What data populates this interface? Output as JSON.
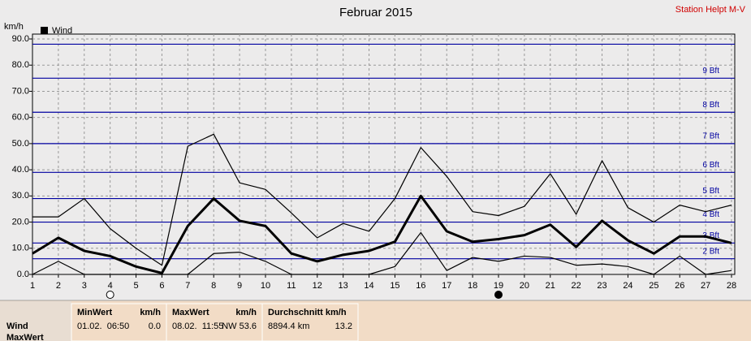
{
  "station": "Station Helpt M-V",
  "chart_data": {
    "type": "line",
    "title": "Februar 2015",
    "y_axis_label": "km/h",
    "legend_label": "Wind",
    "legend_color": "#000000",
    "x": [
      1,
      2,
      3,
      4,
      5,
      6,
      7,
      8,
      9,
      10,
      11,
      12,
      13,
      14,
      15,
      16,
      17,
      18,
      19,
      20,
      21,
      22,
      23,
      24,
      25,
      26,
      27,
      28
    ],
    "xlim": [
      1,
      28
    ],
    "xticks": [
      1,
      2,
      3,
      4,
      5,
      6,
      7,
      8,
      9,
      10,
      11,
      12,
      13,
      14,
      15,
      16,
      17,
      18,
      19,
      20,
      21,
      22,
      23,
      24,
      25,
      26,
      27,
      28
    ],
    "ylim": [
      0,
      90
    ],
    "yticks": [
      {
        "value": 0,
        "label": "0.0"
      },
      {
        "value": 10,
        "label": "10.0"
      },
      {
        "value": 20,
        "label": "20.0"
      },
      {
        "value": 30,
        "label": "30.0"
      },
      {
        "value": 40,
        "label": "40.0"
      },
      {
        "value": 50,
        "label": "50.0"
      },
      {
        "value": 60,
        "label": "60.0"
      },
      {
        "value": 70,
        "label": "70.0"
      },
      {
        "value": 80,
        "label": "80.0"
      },
      {
        "value": 90,
        "label": "90.0"
      }
    ],
    "grid": true,
    "series": [
      {
        "color": "#000000",
        "line_width": 1.2,
        "values": [
          22,
          22,
          29,
          17.5,
          10,
          3.5,
          49,
          53.6,
          35,
          32.5,
          23.5,
          14,
          19.5,
          16.5,
          29,
          48.5,
          37.5,
          24,
          22.5,
          26,
          38.5,
          23,
          43.5,
          25.5,
          20,
          26.5,
          24,
          26.5
        ]
      },
      {
        "color": "#000000",
        "line_width": 3,
        "values": [
          8,
          14,
          9,
          7,
          3,
          0.5,
          18.5,
          29,
          20.5,
          18.5,
          8,
          5,
          7.5,
          9,
          12.5,
          30,
          16.5,
          12.5,
          13.5,
          15,
          19,
          10.5,
          20.5,
          13,
          8,
          14.5,
          14.5,
          12
        ]
      },
      {
        "color": "#000000",
        "line_width": 1.2,
        "values": [
          0,
          5,
          0,
          0,
          0,
          0,
          0,
          8,
          8.5,
          5,
          0,
          0,
          0,
          0,
          3,
          16,
          1.5,
          6.5,
          5,
          7,
          6.5,
          3.5,
          4,
          3,
          0,
          7,
          0,
          1.5
        ]
      }
    ],
    "beaufort": {
      "color": "#0000a0",
      "values": [
        6,
        12,
        20,
        29,
        39,
        50,
        62,
        75,
        88
      ],
      "labels": [
        "2 Bft",
        "3 Bft",
        "4 Bft",
        "5 Bft",
        "6 Bft",
        "7 Bft",
        "8 Bft",
        "9 Bft",
        null
      ]
    },
    "moon_phases": [
      {
        "x": 4,
        "fill": "#ffffff"
      },
      {
        "x": 19,
        "fill": "#000000"
      }
    ]
  },
  "table": {
    "row_labels": [
      "Wind",
      "MaxWert"
    ],
    "columns": [
      {
        "header": "MinWert",
        "unit": "km/h",
        "when": "01.02.  06:50",
        "value": "0.0"
      },
      {
        "header": "MaxWert",
        "unit": "km/h",
        "when": "08.02.  11:55",
        "value": "NW 53.6"
      },
      {
        "header": "Durchschnitt km/h",
        "unit": null,
        "when": "8894.4 km",
        "value": "13.2"
      }
    ]
  }
}
